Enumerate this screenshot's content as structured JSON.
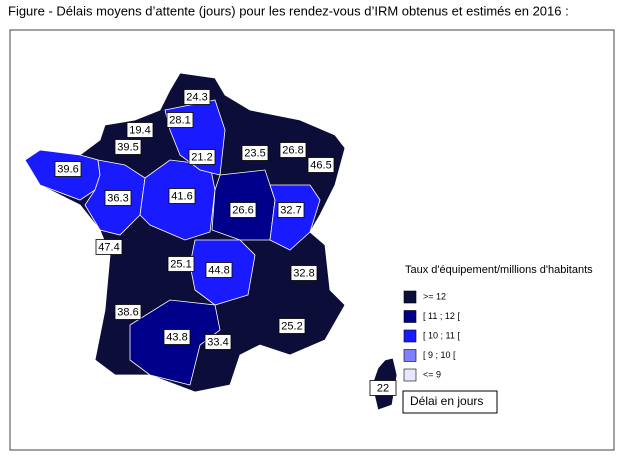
{
  "title": "Figure - Délais moyens d’attente (jours) pour les rendez-vous d’IRM obtenus et estimés en 2016 :",
  "regions": [
    {
      "value": 24.3,
      "color": "#0d0d3a"
    },
    {
      "value": 28.1,
      "color": "#1a1aff"
    },
    {
      "value": 19.4,
      "color": "#0d0d3a"
    },
    {
      "value": 39.5,
      "color": "#0d0d3a"
    },
    {
      "value": 21.2,
      "color": "#1a1aff"
    },
    {
      "value": 23.5,
      "color": "#0d0d3a"
    },
    {
      "value": 26.8,
      "color": "#0d0d3a"
    },
    {
      "value": 46.5,
      "color": "#0d0d3a"
    },
    {
      "value": 39.6,
      "color": "#1a1aff"
    },
    {
      "value": 36.3,
      "color": "#1a1aff"
    },
    {
      "value": 41.6,
      "color": "#1a1aff"
    },
    {
      "value": 26.6,
      "color": "#00008b"
    },
    {
      "value": 32.7,
      "color": "#1a1aff"
    },
    {
      "value": 47.4,
      "color": "#0d0d3a"
    },
    {
      "value": 25.1,
      "color": "#0d0d3a"
    },
    {
      "value": 44.8,
      "color": "#1a1aff"
    },
    {
      "value": 32.8,
      "color": "#0d0d3a"
    },
    {
      "value": 38.6,
      "color": "#0d0d3a"
    },
    {
      "value": 43.8,
      "color": "#00008b"
    },
    {
      "value": 33.4,
      "color": "#0d0d3a"
    },
    {
      "value": 25.2,
      "color": "#0d0d3a"
    },
    {
      "value": 22,
      "color": "#0d0d3a"
    }
  ],
  "legend": {
    "title": "Taux d'équipement/millions d'habitants",
    "items": [
      {
        "label": ">= 12",
        "color": "#0d0d3a"
      },
      {
        "label": "[ 11 ; 12 [",
        "color": "#00008b"
      },
      {
        "label": "[ 10 ; 11 [",
        "color": "#1a1aff"
      },
      {
        "label": "[ 9 ; 10 [",
        "color": "#8080ff"
      },
      {
        "label": "<= 9",
        "color": "#e6e6ff"
      }
    ],
    "note": "Délai en jours"
  }
}
